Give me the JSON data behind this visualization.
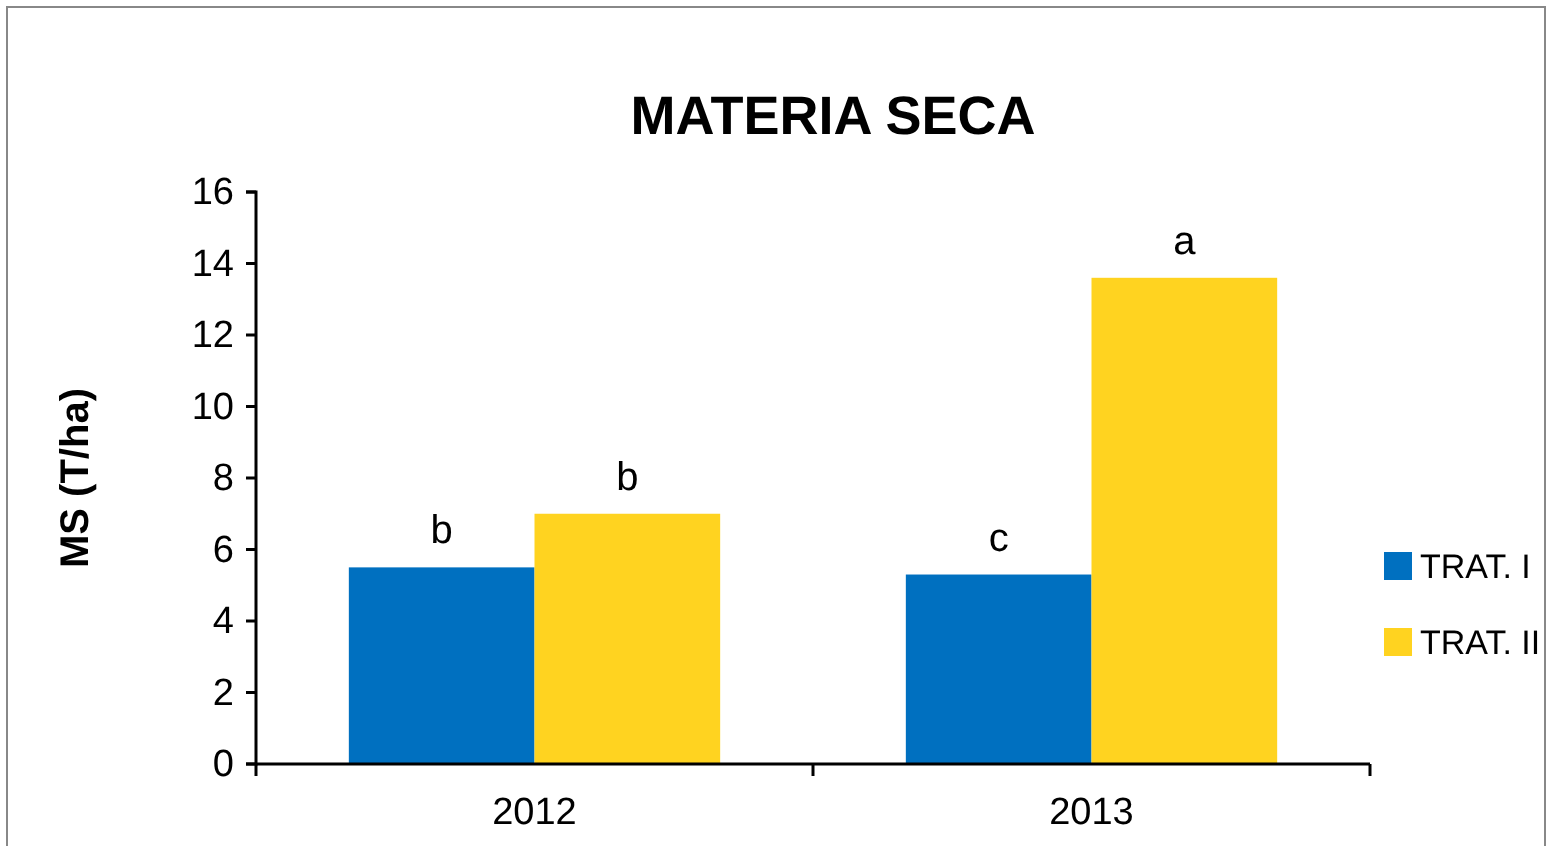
{
  "chart_data": {
    "type": "bar",
    "title": "MATERIA SECA",
    "ylabel": "MS (T/ha)",
    "categories": [
      "2012",
      "2013"
    ],
    "series": [
      {
        "name": "TRAT. I",
        "color": "#0070c0",
        "values": [
          5.5,
          5.3
        ],
        "value_labels": [
          "b",
          "c"
        ]
      },
      {
        "name": "TRAT. II",
        "color": "#ffd320",
        "values": [
          7.0,
          13.6
        ],
        "value_labels": [
          "b",
          "a"
        ]
      }
    ],
    "ylim": [
      0,
      16
    ],
    "yticks": [
      0,
      2,
      4,
      6,
      8,
      10,
      12,
      14,
      16
    ],
    "grid": false,
    "legend": "right"
  }
}
